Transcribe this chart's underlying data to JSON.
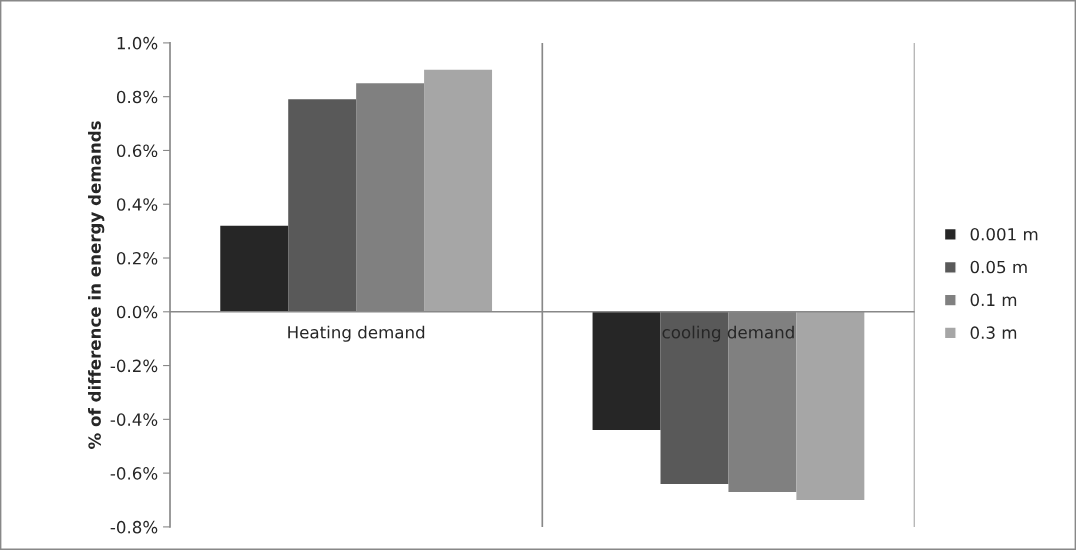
{
  "chart_data": {
    "type": "bar",
    "ylabel": "% of difference in energy demands",
    "categories": [
      "Heating demand",
      "cooling demand"
    ],
    "series": [
      {
        "name": "0.001 m",
        "color": "#262626",
        "values": [
          0.32,
          -0.44
        ]
      },
      {
        "name": "0.05 m",
        "color": "#595959",
        "values": [
          0.79,
          -0.64
        ]
      },
      {
        "name": "0.1 m",
        "color": "#808080",
        "values": [
          0.85,
          -0.67
        ]
      },
      {
        "name": "0.3 m",
        "color": "#a6a6a6",
        "values": [
          0.9,
          -0.7
        ]
      }
    ],
    "ylim": [
      -0.8,
      1.0
    ],
    "yticks": [
      {
        "value": -0.8,
        "label": "-0.8%"
      },
      {
        "value": -0.6,
        "label": "-0.6%"
      },
      {
        "value": -0.4,
        "label": "-0.4%"
      },
      {
        "value": -0.2,
        "label": "-0.2%"
      },
      {
        "value": 0,
        "label": "0.0%"
      },
      {
        "value": 0.2,
        "label": "0.2%"
      },
      {
        "value": 0.4,
        "label": "0.4%"
      },
      {
        "value": 0.6,
        "label": "0.6%"
      },
      {
        "value": 0.8,
        "label": "0.8%"
      },
      {
        "value": 1.0,
        "label": "1.0%"
      }
    ],
    "grid": "x",
    "legend": "right"
  }
}
